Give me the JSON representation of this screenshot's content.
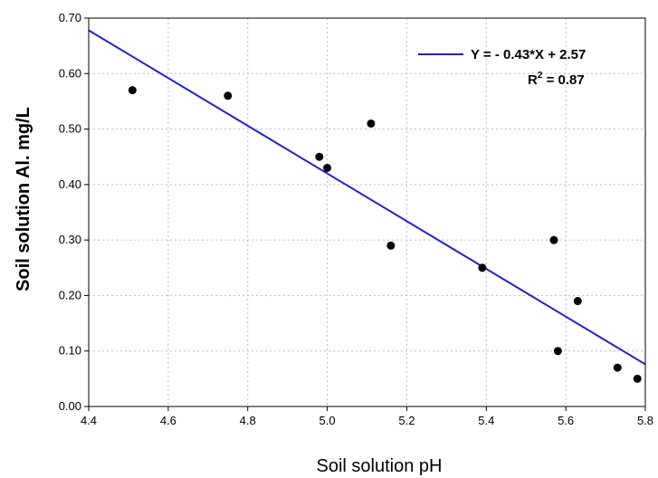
{
  "chart_data": {
    "type": "scatter",
    "xlabel": "Soil solution pH",
    "ylabel": "Soil solution Al. mg/L",
    "xlim": [
      4.4,
      5.8
    ],
    "ylim": [
      0.0,
      0.7
    ],
    "x_ticks": [
      "4.4",
      "4.6",
      "4.8",
      "5.0",
      "5.2",
      "5.4",
      "5.6",
      "5.8"
    ],
    "y_ticks": [
      "0.00",
      "0.10",
      "0.20",
      "0.30",
      "0.40",
      "0.50",
      "0.60",
      "0.70"
    ],
    "grid": true,
    "legend_position": "top-right",
    "points": [
      {
        "x": 4.51,
        "y": 0.57
      },
      {
        "x": 4.75,
        "y": 0.56
      },
      {
        "x": 4.98,
        "y": 0.45
      },
      {
        "x": 5.0,
        "y": 0.43
      },
      {
        "x": 5.11,
        "y": 0.51
      },
      {
        "x": 5.16,
        "y": 0.29
      },
      {
        "x": 5.39,
        "y": 0.25
      },
      {
        "x": 5.57,
        "y": 0.3
      },
      {
        "x": 5.58,
        "y": 0.1
      },
      {
        "x": 5.63,
        "y": 0.19
      },
      {
        "x": 5.73,
        "y": 0.07
      },
      {
        "x": 5.78,
        "y": 0.05
      }
    ],
    "regression": {
      "slope": -0.43,
      "intercept": 2.57,
      "color": "#1f1fd6",
      "equation_label": "Y = - 0.43*X + 2.57",
      "r2_label_prefix": "R",
      "r2_label_sup": "2",
      "r2_label_suffix": " = 0.87"
    },
    "point_color": "#000000"
  }
}
